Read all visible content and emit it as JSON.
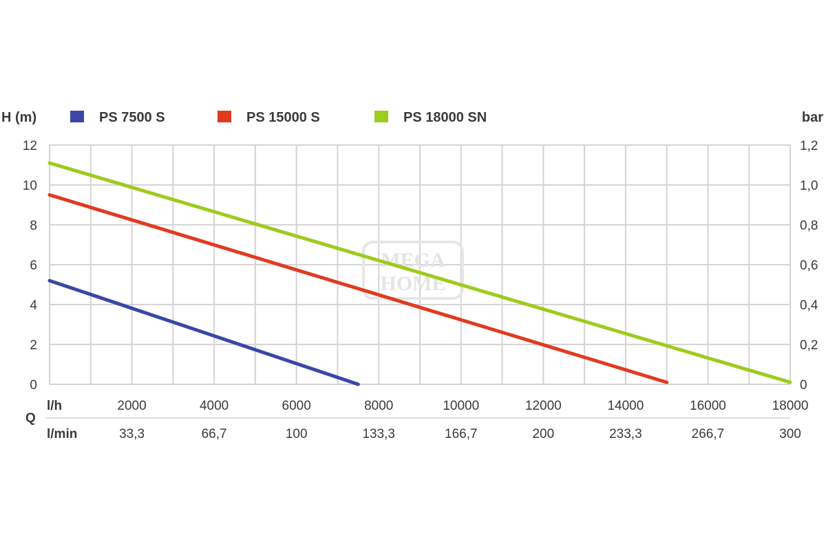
{
  "chart_data": {
    "type": "line",
    "y_left_label": "H (m)",
    "y_right_label": "bar",
    "y_left_ticks": [
      "12",
      "10",
      "8",
      "6",
      "4",
      "2",
      "0"
    ],
    "y_right_ticks": [
      "1,2",
      "1,0",
      "0,8",
      "0,6",
      "0,4",
      "0,2",
      "0"
    ],
    "ylim": [
      0,
      12
    ],
    "xlim": [
      0,
      18000
    ],
    "grid": true,
    "legend_position": "top",
    "x_axis_group_label": "Q",
    "x_axis_lh_unit": "l/h",
    "x_axis_lmin_unit": "l/min",
    "x_ticks_lh": [
      "2000",
      "4000",
      "6000",
      "8000",
      "10000",
      "12000",
      "14000",
      "16000",
      "18000"
    ],
    "x_ticks_lmin": [
      "33,3",
      "66,7",
      "100",
      "133,3",
      "166,7",
      "200",
      "233,3",
      "266,7",
      "300"
    ],
    "series": [
      {
        "name": "PS 7500 S",
        "color": "#3b46a6",
        "points": [
          [
            0,
            5.2
          ],
          [
            7500,
            0
          ]
        ]
      },
      {
        "name": "PS 15000 S",
        "color": "#e03b1f",
        "points": [
          [
            0,
            9.5
          ],
          [
            15000,
            0.1
          ]
        ]
      },
      {
        "name": "PS 18000 SN",
        "color": "#9ccc1c",
        "points": [
          [
            0,
            11.1
          ],
          [
            18000,
            0.1
          ]
        ]
      }
    ],
    "watermark": "MEGA HOME"
  }
}
